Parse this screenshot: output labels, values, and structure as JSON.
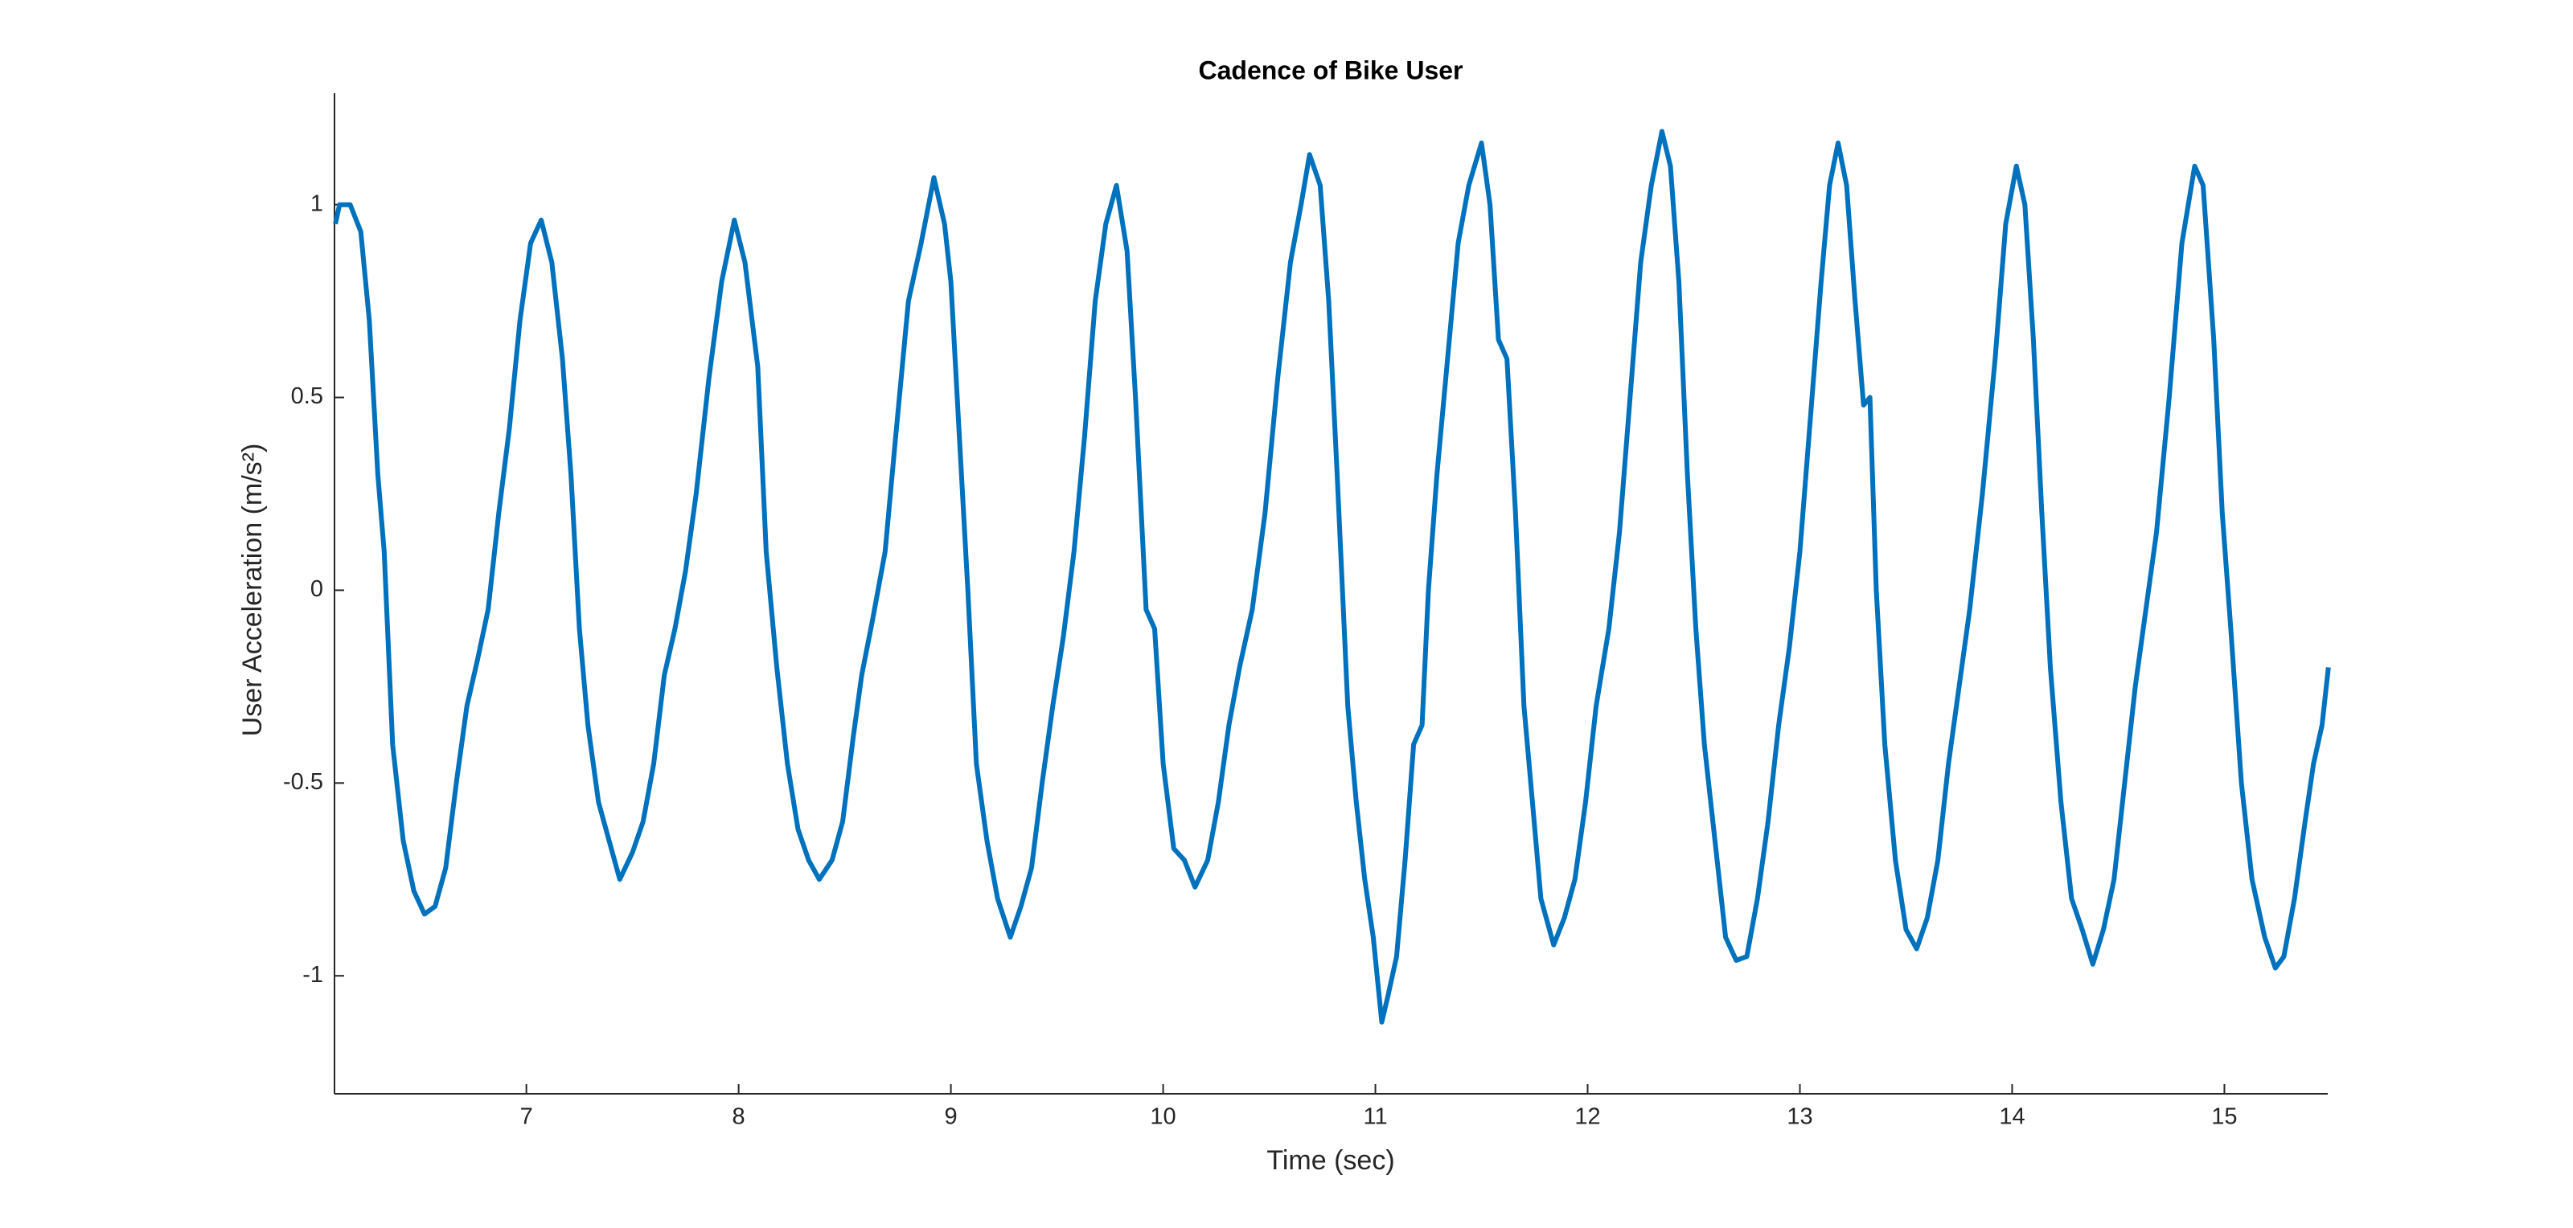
{
  "chart_data": {
    "type": "line",
    "title": "Cadence of Bike User",
    "x_label": "Time (sec)",
    "y_label": "User Acceleration (m/s²)",
    "color": "#0072bd",
    "x": [
      6.1,
      6.12,
      6.17,
      6.22,
      6.26,
      6.3,
      6.33,
      6.37,
      6.42,
      6.47,
      6.52,
      6.57,
      6.62,
      6.67,
      6.72,
      6.77,
      6.82,
      6.87,
      6.92,
      6.97,
      7.02,
      7.07,
      7.12,
      7.17,
      7.21,
      7.25,
      7.29,
      7.34,
      7.39,
      7.44,
      7.5,
      7.55,
      7.6,
      7.65,
      7.7,
      7.75,
      7.8,
      7.86,
      7.92,
      7.98,
      8.03,
      8.09,
      8.13,
      8.18,
      8.23,
      8.28,
      8.33,
      8.38,
      8.44,
      8.49,
      8.54,
      8.58,
      8.63,
      8.69,
      8.74,
      8.8,
      8.86,
      8.92,
      8.97,
      9.0,
      9.04,
      9.08,
      9.12,
      9.17,
      9.22,
      9.28,
      9.33,
      9.38,
      9.43,
      9.48,
      9.53,
      9.58,
      9.63,
      9.68,
      9.73,
      9.78,
      9.83,
      9.87,
      9.92,
      9.96,
      10.0,
      10.05,
      10.1,
      10.15,
      10.21,
      10.26,
      10.31,
      10.36,
      10.42,
      10.48,
      10.54,
      10.6,
      10.65,
      10.69,
      10.74,
      10.78,
      10.82,
      10.87,
      10.91,
      10.95,
      10.99,
      11.03,
      11.06,
      11.1,
      11.14,
      11.18,
      11.22,
      11.25,
      11.29,
      11.34,
      11.39,
      11.44,
      11.5,
      11.54,
      11.58,
      11.62,
      11.66,
      11.7,
      11.74,
      11.78,
      11.84,
      11.89,
      11.94,
      11.99,
      12.04,
      12.1,
      12.15,
      12.2,
      12.25,
      12.3,
      12.35,
      12.39,
      12.43,
      12.47,
      12.51,
      12.55,
      12.6,
      12.65,
      12.7,
      12.75,
      12.8,
      12.85,
      12.9,
      12.95,
      13.0,
      13.05,
      13.1,
      13.14,
      13.18,
      13.22,
      13.26,
      13.3,
      13.33,
      13.36,
      13.4,
      13.45,
      13.5,
      13.55,
      13.6,
      13.65,
      13.7,
      13.75,
      13.8,
      13.86,
      13.92,
      13.97,
      14.02,
      14.06,
      14.1,
      14.14,
      14.18,
      14.23,
      14.28,
      14.33,
      14.38,
      14.43,
      14.48,
      14.53,
      14.58,
      14.63,
      14.68,
      14.74,
      14.8,
      14.86,
      14.9,
      14.95,
      14.99,
      15.03,
      15.08,
      15.13,
      15.19,
      15.24,
      15.28,
      15.33,
      15.38,
      15.42,
      15.46,
      15.49
    ],
    "values": [
      0.95,
      1.0,
      1.0,
      0.93,
      0.7,
      0.3,
      0.1,
      -0.4,
      -0.65,
      -0.78,
      -0.84,
      -0.82,
      -0.72,
      -0.5,
      -0.3,
      -0.18,
      -0.05,
      0.2,
      0.42,
      0.7,
      0.9,
      0.96,
      0.85,
      0.6,
      0.3,
      -0.1,
      -0.35,
      -0.55,
      -0.65,
      -0.75,
      -0.68,
      -0.6,
      -0.45,
      -0.22,
      -0.1,
      0.05,
      0.25,
      0.55,
      0.8,
      0.96,
      0.85,
      0.58,
      0.1,
      -0.2,
      -0.45,
      -0.62,
      -0.7,
      -0.75,
      -0.7,
      -0.6,
      -0.38,
      -0.22,
      -0.08,
      0.1,
      0.4,
      0.75,
      0.9,
      1.07,
      0.95,
      0.8,
      0.4,
      0.0,
      -0.45,
      -0.65,
      -0.8,
      -0.9,
      -0.82,
      -0.72,
      -0.5,
      -0.3,
      -0.12,
      0.1,
      0.4,
      0.75,
      0.95,
      1.05,
      0.88,
      0.5,
      -0.05,
      -0.1,
      -0.45,
      -0.67,
      -0.7,
      -0.77,
      -0.7,
      -0.55,
      -0.35,
      -0.2,
      -0.05,
      0.2,
      0.55,
      0.85,
      1.0,
      1.13,
      1.05,
      0.75,
      0.3,
      -0.3,
      -0.55,
      -0.75,
      -0.9,
      -1.12,
      -1.05,
      -0.95,
      -0.7,
      -0.4,
      -0.35,
      0.0,
      0.3,
      0.6,
      0.9,
      1.05,
      1.16,
      1.0,
      0.65,
      0.6,
      0.2,
      -0.3,
      -0.55,
      -0.8,
      -0.92,
      -0.85,
      -0.75,
      -0.55,
      -0.3,
      -0.1,
      0.15,
      0.5,
      0.85,
      1.05,
      1.19,
      1.1,
      0.8,
      0.3,
      -0.1,
      -0.4,
      -0.65,
      -0.9,
      -0.96,
      -0.95,
      -0.8,
      -0.6,
      -0.35,
      -0.15,
      0.1,
      0.45,
      0.8,
      1.05,
      1.16,
      1.05,
      0.75,
      0.48,
      0.5,
      0.0,
      -0.4,
      -0.7,
      -0.88,
      -0.93,
      -0.85,
      -0.7,
      -0.45,
      -0.25,
      -0.05,
      0.25,
      0.6,
      0.95,
      1.1,
      1.0,
      0.65,
      0.2,
      -0.2,
      -0.55,
      -0.8,
      -0.88,
      -0.97,
      -0.88,
      -0.75,
      -0.5,
      -0.25,
      -0.05,
      0.15,
      0.5,
      0.9,
      1.1,
      1.05,
      0.65,
      0.2,
      -0.1,
      -0.5,
      -0.75,
      -0.9,
      -0.98,
      -0.95,
      -0.8,
      -0.6,
      -0.45,
      -0.35,
      -0.2
    ],
    "xlim": [
      6.096,
      15.487
    ],
    "ylim": [
      -1.306,
      1.289
    ],
    "xticks": [
      7,
      8,
      9,
      10,
      11,
      12,
      13,
      14,
      15
    ],
    "yticks": [
      -1,
      -0.5,
      0,
      0.5,
      1
    ]
  }
}
